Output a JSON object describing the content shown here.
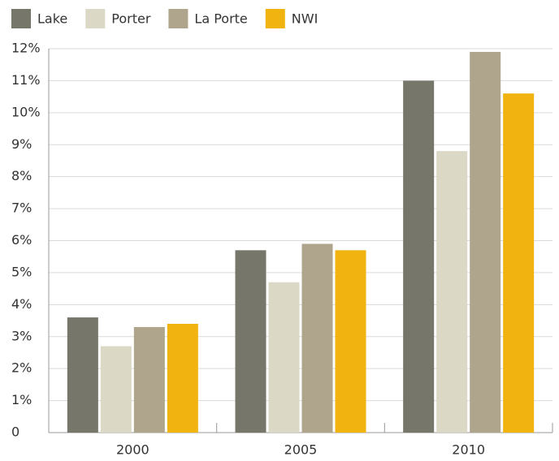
{
  "chart_data": {
    "type": "bar",
    "categories": [
      "2000",
      "2005",
      "2010"
    ],
    "series": [
      {
        "name": "Lake",
        "color": "#77766a",
        "values": [
          3.6,
          5.7,
          11.0
        ]
      },
      {
        "name": "Porter",
        "color": "#dbd8c6",
        "values": [
          2.7,
          4.7,
          8.8
        ]
      },
      {
        "name": "La Porte",
        "color": "#afa58d",
        "values": [
          3.3,
          5.9,
          11.9
        ]
      },
      {
        "name": "NWI",
        "color": "#f0b310",
        "values": [
          3.4,
          5.7,
          10.6
        ]
      }
    ],
    "ylim": [
      0,
      12
    ],
    "yticks": [
      0,
      {
        "value": 1,
        "label": "1%"
      },
      {
        "value": 2,
        "label": "2%"
      },
      {
        "value": 3,
        "label": "3%"
      },
      {
        "value": 4,
        "label": "4%"
      },
      {
        "value": 5,
        "label": "5%"
      },
      {
        "value": 6,
        "label": "6%"
      },
      {
        "value": 7,
        "label": "7%"
      },
      {
        "value": 8,
        "label": "8%"
      },
      {
        "value": 9,
        "label": "9%"
      },
      {
        "value": 10,
        "label": "10%"
      },
      {
        "value": 11,
        "label": "11%"
      },
      {
        "value": 12,
        "label": "12%"
      }
    ],
    "grid": true,
    "legend": "top-left"
  }
}
